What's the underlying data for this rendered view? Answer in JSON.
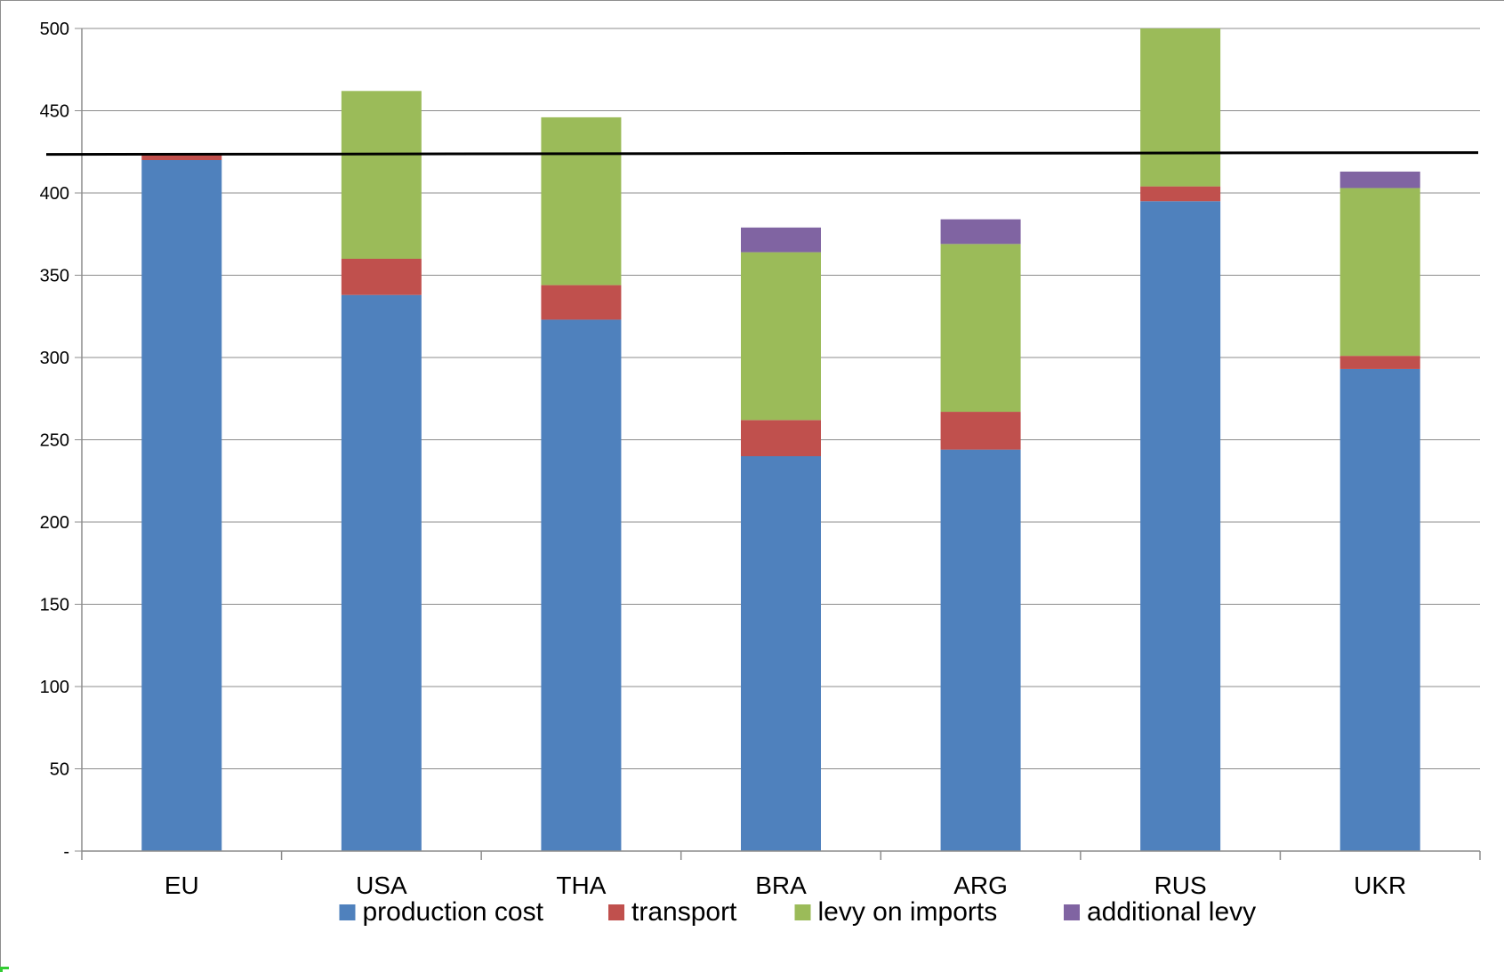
{
  "chart_data": {
    "type": "bar",
    "stacked": true,
    "title": "",
    "xlabel": "",
    "ylabel": "",
    "categories": [
      "EU",
      "USA",
      "THA",
      "BRA",
      "ARG",
      "RUS",
      "UKR"
    ],
    "series": [
      {
        "name": "production cost",
        "color": "#4f81bd",
        "values": [
          420,
          338,
          323,
          240,
          244,
          395,
          293
        ]
      },
      {
        "name": "transport",
        "color": "#c0504d",
        "values": [
          4,
          22,
          21,
          22,
          23,
          9,
          8
        ]
      },
      {
        "name": "levy on imports",
        "color": "#9bbb59",
        "values": [
          0,
          102,
          102,
          102,
          102,
          96,
          102
        ]
      },
      {
        "name": "additional levy",
        "color": "#8064a2",
        "values": [
          0,
          0,
          0,
          15,
          15,
          0,
          10
        ]
      }
    ],
    "ylim": [
      0,
      500
    ],
    "yticks": [
      0,
      50,
      100,
      150,
      200,
      250,
      300,
      350,
      400,
      450,
      500
    ],
    "ytick_labels": [
      "-",
      "50",
      "100",
      "150",
      "200",
      "250",
      "300",
      "350",
      "400",
      "450",
      "500"
    ],
    "reference_line": {
      "value": 424,
      "color": "#000000"
    },
    "grid": true,
    "legend_position": "bottom"
  }
}
